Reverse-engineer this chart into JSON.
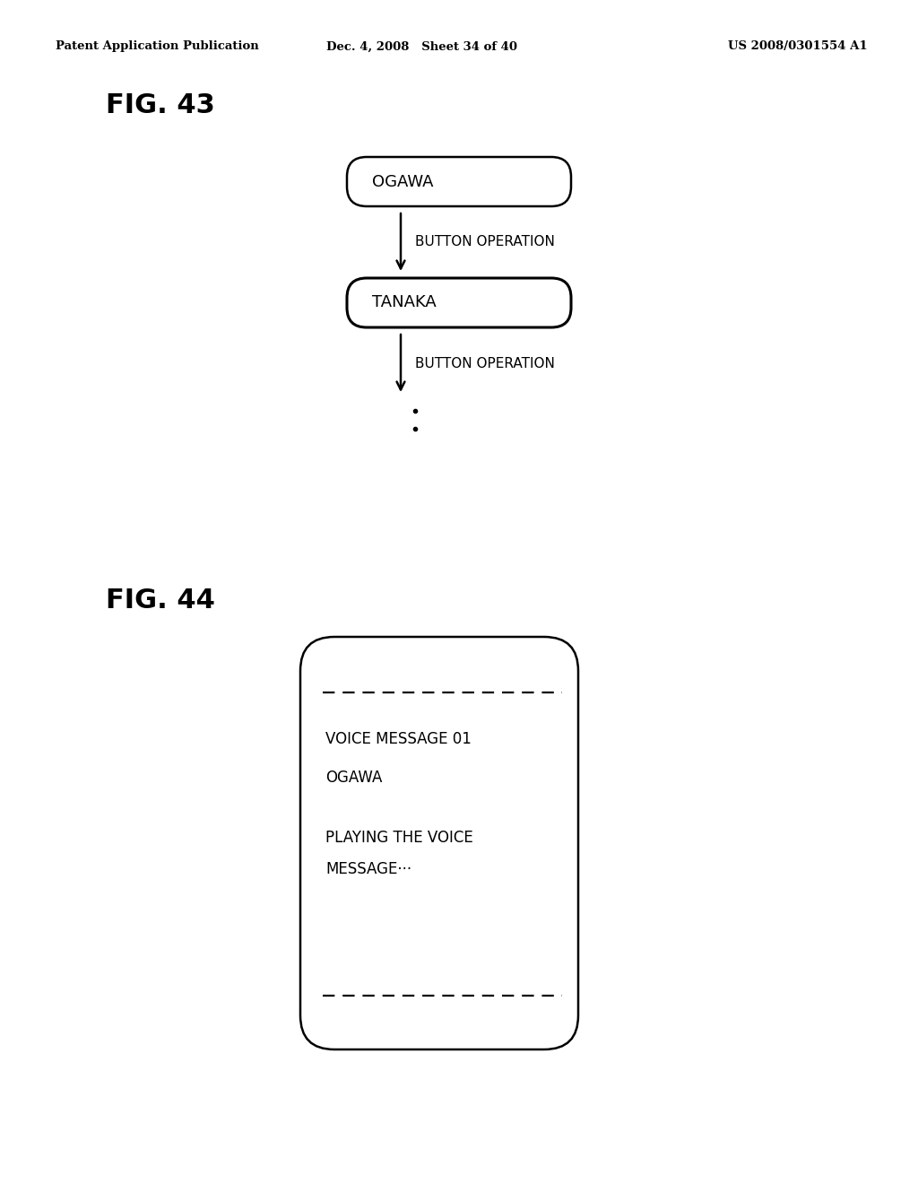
{
  "bg_color": "#ffffff",
  "header_left": "Patent Application Publication",
  "header_mid": "Dec. 4, 2008   Sheet 34 of 40",
  "header_right": "US 2008/0301554 A1",
  "fig43_label": "FIG. 43",
  "fig44_label": "FIG. 44",
  "box1_text": "OGAWA",
  "box2_text": "TANAKA",
  "arrow_label1": "BUTTON OPERATION",
  "arrow_label2": "BUTTON OPERATION",
  "voice_line1": "VOICE MESSAGE 01",
  "voice_line2": "OGAWA",
  "voice_line3": "PLAYING THE VOICE",
  "voice_line4": "MESSAGE···"
}
